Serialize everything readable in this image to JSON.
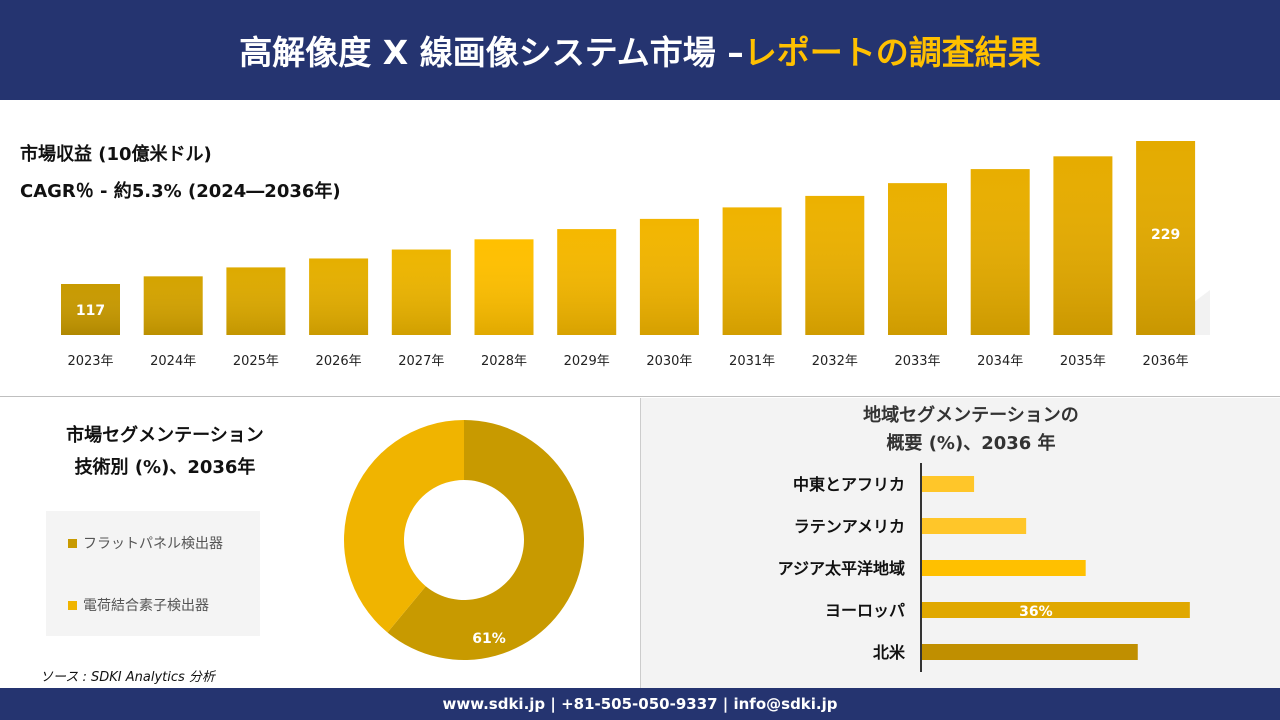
{
  "header": {
    "title_main": "高解像度 X 線画像システム市場 –",
    "title_accent": "レポートの調査結果"
  },
  "colors": {
    "navy": "#253470",
    "accent": "#FFC000",
    "dark_gold": "#C89A00"
  },
  "revenue": {
    "label": "市場収益 (10億米ドル)",
    "cagr": "CAGR％ - 約5.3% (2024―2036年)"
  },
  "tech_segment": {
    "title_line1": "市場セグメンテーション",
    "title_line2": "技術別 (%)、2036年"
  },
  "region_segment": {
    "title_line1": "地域セグメンテーションの",
    "title_line2": "概要 (%)、2036 年"
  },
  "source": "ソース : SDKI Analytics 分析",
  "footer": "www.sdki.jp | +81-505-050-9337 | info@sdki.jp",
  "chart_data": [
    {
      "type": "bar",
      "categories": [
        "2023年",
        "2024年",
        "2025年",
        "2026年",
        "2027年",
        "2028年",
        "2029年",
        "2030年",
        "2031年",
        "2032年",
        "2033年",
        "2034年",
        "2035年",
        "2036年"
      ],
      "values": [
        117,
        123,
        130,
        137,
        144,
        152,
        160,
        168,
        177,
        186,
        196,
        207,
        217,
        229
      ],
      "data_labels": {
        "0": "117",
        "13": "229"
      },
      "grid": false
    },
    {
      "type": "pie",
      "donut": true,
      "categories": [
        "フラットパネル検出器",
        "電荷結合素子検出器"
      ],
      "values": [
        61,
        39
      ],
      "colors": [
        "#C89A00",
        "#F0B400"
      ],
      "data_labels": {
        "0": "61%"
      },
      "legend": "left"
    },
    {
      "type": "bar",
      "orientation": "horizontal",
      "categories": [
        "中東とアフリカ",
        "ラテンアメリカ",
        "アジア太平洋地域",
        "ヨーロッパ",
        "北米"
      ],
      "values": [
        7,
        14,
        22,
        36,
        29
      ],
      "colors": [
        "#FFC629",
        "#FFC629",
        "#FFC000",
        "#E0A800",
        "#C08F00"
      ],
      "data_labels": {
        "3": "36%"
      },
      "grid": false
    }
  ]
}
